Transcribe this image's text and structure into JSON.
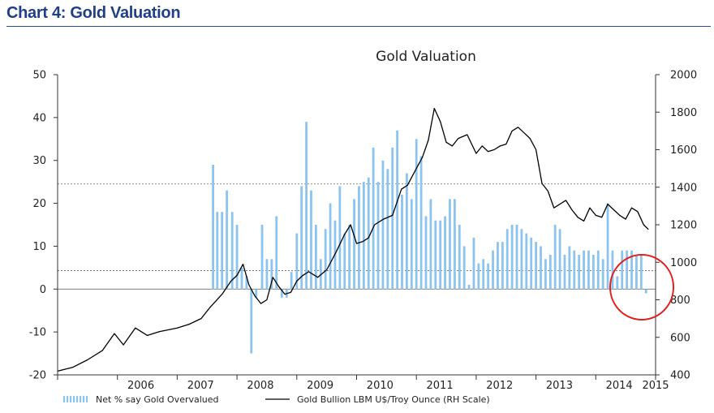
{
  "header": {
    "title": "Chart 4: Gold Valuation"
  },
  "chart_data": {
    "type": "bar",
    "title": "Gold Valuation",
    "x_ticks": [
      "2006",
      "2007",
      "2008",
      "2009",
      "2010",
      "2011",
      "2012",
      "2013",
      "2014",
      "2015"
    ],
    "left_axis": {
      "ylim": [
        -20,
        50
      ],
      "ticks": [
        "-20",
        "-10",
        "0",
        "10",
        "20",
        "30",
        "40",
        "50"
      ]
    },
    "right_axis": {
      "ylim": [
        400,
        2000
      ],
      "ticks": [
        "400",
        "600",
        "800",
        "1000",
        "1200",
        "1400",
        "1600",
        "1800",
        "2000"
      ]
    },
    "reference_lines_left": [
      24.5,
      4.3
    ],
    "series": [
      {
        "name": "Net % say Gold Overvalued",
        "axis": "left",
        "kind": "bar",
        "color": "#8cc4ee",
        "points": [
          [
            2007.6,
            29
          ],
          [
            2007.67,
            18
          ],
          [
            2007.75,
            18
          ],
          [
            2007.83,
            23
          ],
          [
            2007.92,
            18
          ],
          [
            2008.0,
            15
          ],
          [
            2008.08,
            5
          ],
          [
            2008.16,
            3
          ],
          [
            2008.24,
            -15
          ],
          [
            2008.32,
            -2
          ],
          [
            2008.42,
            15
          ],
          [
            2008.5,
            7
          ],
          [
            2008.58,
            7
          ],
          [
            2008.66,
            17
          ],
          [
            2008.75,
            -2
          ],
          [
            2008.83,
            -2
          ],
          [
            2008.91,
            4
          ],
          [
            2009.0,
            13
          ],
          [
            2009.08,
            24
          ],
          [
            2009.16,
            39
          ],
          [
            2009.24,
            23
          ],
          [
            2009.32,
            15
          ],
          [
            2009.4,
            7
          ],
          [
            2009.48,
            14
          ],
          [
            2009.56,
            20
          ],
          [
            2009.64,
            16
          ],
          [
            2009.72,
            24
          ],
          [
            2009.8,
            13
          ],
          [
            2009.88,
            15
          ],
          [
            2009.96,
            21
          ],
          [
            2010.04,
            24
          ],
          [
            2010.12,
            25
          ],
          [
            2010.2,
            26
          ],
          [
            2010.28,
            33
          ],
          [
            2010.36,
            25
          ],
          [
            2010.44,
            30
          ],
          [
            2010.52,
            28
          ],
          [
            2010.6,
            33
          ],
          [
            2010.68,
            37
          ],
          [
            2010.76,
            22
          ],
          [
            2010.84,
            27
          ],
          [
            2010.92,
            21
          ],
          [
            2011.0,
            35
          ],
          [
            2011.08,
            31
          ],
          [
            2011.16,
            17
          ],
          [
            2011.24,
            21
          ],
          [
            2011.32,
            16
          ],
          [
            2011.4,
            16
          ],
          [
            2011.48,
            17
          ],
          [
            2011.56,
            21
          ],
          [
            2011.64,
            21
          ],
          [
            2011.72,
            15
          ],
          [
            2011.8,
            10
          ],
          [
            2011.88,
            1
          ],
          [
            2011.96,
            12
          ],
          [
            2012.04,
            6
          ],
          [
            2012.12,
            7
          ],
          [
            2012.2,
            6
          ],
          [
            2012.28,
            9
          ],
          [
            2012.36,
            11
          ],
          [
            2012.44,
            11
          ],
          [
            2012.52,
            14
          ],
          [
            2012.6,
            15
          ],
          [
            2012.68,
            15
          ],
          [
            2012.76,
            14
          ],
          [
            2012.84,
            13
          ],
          [
            2012.92,
            12
          ],
          [
            2013.0,
            11
          ],
          [
            2013.08,
            10
          ],
          [
            2013.16,
            7
          ],
          [
            2013.24,
            8
          ],
          [
            2013.32,
            15
          ],
          [
            2013.4,
            14
          ],
          [
            2013.48,
            8
          ],
          [
            2013.56,
            10
          ],
          [
            2013.64,
            9
          ],
          [
            2013.72,
            8
          ],
          [
            2013.8,
            9
          ],
          [
            2013.88,
            9
          ],
          [
            2013.96,
            8
          ],
          [
            2014.04,
            9
          ],
          [
            2014.12,
            7
          ],
          [
            2014.2,
            20
          ],
          [
            2014.28,
            9
          ],
          [
            2014.36,
            3
          ],
          [
            2014.44,
            9
          ],
          [
            2014.52,
            9
          ],
          [
            2014.6,
            9
          ],
          [
            2014.68,
            8
          ],
          [
            2014.76,
            8
          ],
          [
            2014.84,
            -1
          ]
        ]
      },
      {
        "name": "Gold Bullion LBM U$/Troy Ounce (RH Scale)",
        "axis": "right",
        "kind": "line",
        "color": "#000000",
        "points": [
          [
            2005.0,
            420
          ],
          [
            2005.25,
            440
          ],
          [
            2005.5,
            480
          ],
          [
            2005.75,
            530
          ],
          [
            2005.95,
            620
          ],
          [
            2006.1,
            560
          ],
          [
            2006.3,
            650
          ],
          [
            2006.5,
            610
          ],
          [
            2006.7,
            630
          ],
          [
            2006.85,
            640
          ],
          [
            2007.0,
            650
          ],
          [
            2007.2,
            670
          ],
          [
            2007.4,
            700
          ],
          [
            2007.55,
            760
          ],
          [
            2007.75,
            830
          ],
          [
            2007.9,
            900
          ],
          [
            2008.0,
            930
          ],
          [
            2008.1,
            990
          ],
          [
            2008.2,
            880
          ],
          [
            2008.3,
            820
          ],
          [
            2008.4,
            780
          ],
          [
            2008.5,
            800
          ],
          [
            2008.6,
            920
          ],
          [
            2008.7,
            870
          ],
          [
            2008.8,
            830
          ],
          [
            2008.9,
            840
          ],
          [
            2009.0,
            900
          ],
          [
            2009.1,
            930
          ],
          [
            2009.2,
            950
          ],
          [
            2009.35,
            920
          ],
          [
            2009.5,
            960
          ],
          [
            2009.65,
            1050
          ],
          [
            2009.8,
            1150
          ],
          [
            2009.9,
            1200
          ],
          [
            2010.0,
            1100
          ],
          [
            2010.1,
            1110
          ],
          [
            2010.2,
            1130
          ],
          [
            2010.3,
            1200
          ],
          [
            2010.45,
            1230
          ],
          [
            2010.6,
            1250
          ],
          [
            2010.75,
            1390
          ],
          [
            2010.85,
            1410
          ],
          [
            2011.0,
            1500
          ],
          [
            2011.1,
            1560
          ],
          [
            2011.2,
            1650
          ],
          [
            2011.3,
            1820
          ],
          [
            2011.4,
            1750
          ],
          [
            2011.5,
            1640
          ],
          [
            2011.6,
            1620
          ],
          [
            2011.7,
            1660
          ],
          [
            2011.85,
            1680
          ],
          [
            2012.0,
            1580
          ],
          [
            2012.1,
            1620
          ],
          [
            2012.2,
            1590
          ],
          [
            2012.3,
            1600
          ],
          [
            2012.4,
            1620
          ],
          [
            2012.5,
            1630
          ],
          [
            2012.6,
            1700
          ],
          [
            2012.7,
            1720
          ],
          [
            2012.8,
            1690
          ],
          [
            2012.9,
            1660
          ],
          [
            2013.0,
            1600
          ],
          [
            2013.1,
            1420
          ],
          [
            2013.2,
            1380
          ],
          [
            2013.3,
            1290
          ],
          [
            2013.4,
            1310
          ],
          [
            2013.5,
            1330
          ],
          [
            2013.6,
            1280
          ],
          [
            2013.7,
            1240
          ],
          [
            2013.8,
            1220
          ],
          [
            2013.9,
            1290
          ],
          [
            2014.0,
            1250
          ],
          [
            2014.1,
            1240
          ],
          [
            2014.2,
            1310
          ],
          [
            2014.3,
            1280
          ],
          [
            2014.4,
            1250
          ],
          [
            2014.5,
            1230
          ],
          [
            2014.6,
            1290
          ],
          [
            2014.7,
            1270
          ],
          [
            2014.8,
            1200
          ],
          [
            2014.88,
            1175
          ]
        ]
      }
    ],
    "annotation": {
      "type": "circle",
      "color": "#e0201c"
    }
  }
}
